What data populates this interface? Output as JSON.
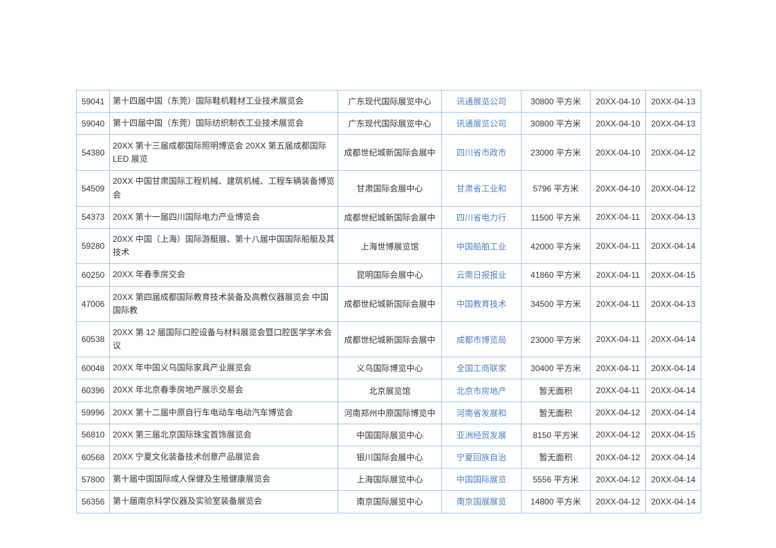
{
  "table": {
    "columns": [
      "id",
      "name",
      "venue",
      "organizer",
      "area",
      "start_date",
      "end_date"
    ],
    "rows": [
      {
        "id": "59041",
        "name": "第十四届中国（东莞）国际鞋机鞋材工业技术展览会",
        "venue": "广东现代国际展览中心",
        "organizer": "讯通展览公司",
        "area": "30800 平方米",
        "start": "20XX-04-10",
        "end": "20XX-04-13",
        "tall": false
      },
      {
        "id": "59040",
        "name": "第十四届中国（东莞）国际纺织制衣工业技术展览会",
        "venue": "广东现代国际展览中心",
        "organizer": "讯通展览公司",
        "area": "30800 平方米",
        "start": "20XX-04-10",
        "end": "20XX-04-13",
        "tall": false
      },
      {
        "id": "54380",
        "name": "20XX 第十三届成都国际照明博览会 20XX 第五届成都国际 LED 展览",
        "venue": "成都世纪城新国际会展中",
        "organizer": "四川省市政市",
        "area": "23000 平方米",
        "start": "20XX-04-10",
        "end": "20XX-04-12",
        "tall": true
      },
      {
        "id": "54509",
        "name": "20XX 中国甘肃国际工程机械、建筑机械、工程车辆装备博览会",
        "venue": "甘肃国际会展中心",
        "organizer": "甘肃省工业和",
        "area": "5796 平方米",
        "start": "20XX-04-10",
        "end": "20XX-04-12",
        "tall": false
      },
      {
        "id": "54373",
        "name": "20XX 第十一届四川国际电力产业博览会",
        "venue": "成都世纪城新国际会展中",
        "organizer": "四川省电力行",
        "area": "11500 平方米",
        "start": "20XX-04-11",
        "end": "20XX-04-13",
        "tall": false
      },
      {
        "id": "59280",
        "name": "20XX 中国（上海）国际游艇展、第十八届中国国际船艇及其技术",
        "venue": "上海世博展览馆",
        "organizer": "中国船舶工业",
        "area": "42000 平方米",
        "start": "20XX-04-11",
        "end": "20XX-04-14",
        "tall": false
      },
      {
        "id": "60250",
        "name": "20XX 年春季房交会",
        "venue": "昆明国际会展中心",
        "organizer": "云南日报报业",
        "area": "41860 平方米",
        "start": "20XX-04-11",
        "end": "20XX-04-15",
        "tall": false
      },
      {
        "id": "47006",
        "name": "20XX 第四届成都国际教育技术装备及高教仪器展览会 中国国际教",
        "venue": "成都世纪城新国际会展中",
        "organizer": "中国教育技术",
        "area": "34500 平方米",
        "start": "20XX-04-11",
        "end": "20XX-04-13",
        "tall": false
      },
      {
        "id": "60538",
        "name": "20XX 第 12 届国际口腔设备与材料展览会暨口腔医学学术会议",
        "venue": "成都世纪城新国际会展中",
        "organizer": "成都市博览局",
        "area": "23000 平方米",
        "start": "20XX-04-11",
        "end": "20XX-04-14",
        "tall": false
      },
      {
        "id": "60048",
        "name": "20XX 年中国义乌国际家具产业展览会",
        "venue": "义乌国际博览中心",
        "organizer": "全国工商联家",
        "area": "30400 平方米",
        "start": "20XX-04-11",
        "end": "20XX-04-14",
        "tall": false
      },
      {
        "id": "60396",
        "name": "20XX 年北京春季房地产展示交易会",
        "venue": "北京展览馆",
        "organizer": "北京市房地产",
        "area": "暂无面积",
        "start": "20XX-04-11",
        "end": "20XX-04-14",
        "tall": false
      },
      {
        "id": "59996",
        "name": "20XX 第十二届中原自行车电动车电动汽车博览会",
        "venue": "河南郑州中原国际博览中",
        "organizer": "河南省发展和",
        "area": "暂无面积",
        "start": "20XX-04-12",
        "end": "20XX-04-14",
        "tall": false
      },
      {
        "id": "56810",
        "name": "20XX 第三届北京国际珠宝首饰展览会",
        "venue": "中国国际展览中心",
        "organizer": "亚洲经贸发展",
        "area": "8150 平方米",
        "start": "20XX-04-12",
        "end": "20XX-04-15",
        "tall": false
      },
      {
        "id": "60568",
        "name": "20XX 宁夏文化装备技术创意产品展览会",
        "venue": "银川国际会展中心",
        "organizer": "宁夏回族自治",
        "area": "暂无面积",
        "start": "20XX-04-12",
        "end": "20XX-04-14",
        "tall": false
      },
      {
        "id": "57800",
        "name": "第十届中国国际成人保健及生殖健康展览会",
        "venue": "上海国际展览中心",
        "organizer": "中国国际展览",
        "area": "5556 平方米",
        "start": "20XX-04-12",
        "end": "20XX-04-14",
        "tall": false
      },
      {
        "id": "56356",
        "name": "第十届南京科学仪器及实验室装备展览会",
        "venue": "南京国际展览中心",
        "organizer": "南京国展展览",
        "area": "14800 平方米",
        "start": "20XX-04-12",
        "end": "20XX-04-14",
        "tall": false
      }
    ]
  }
}
